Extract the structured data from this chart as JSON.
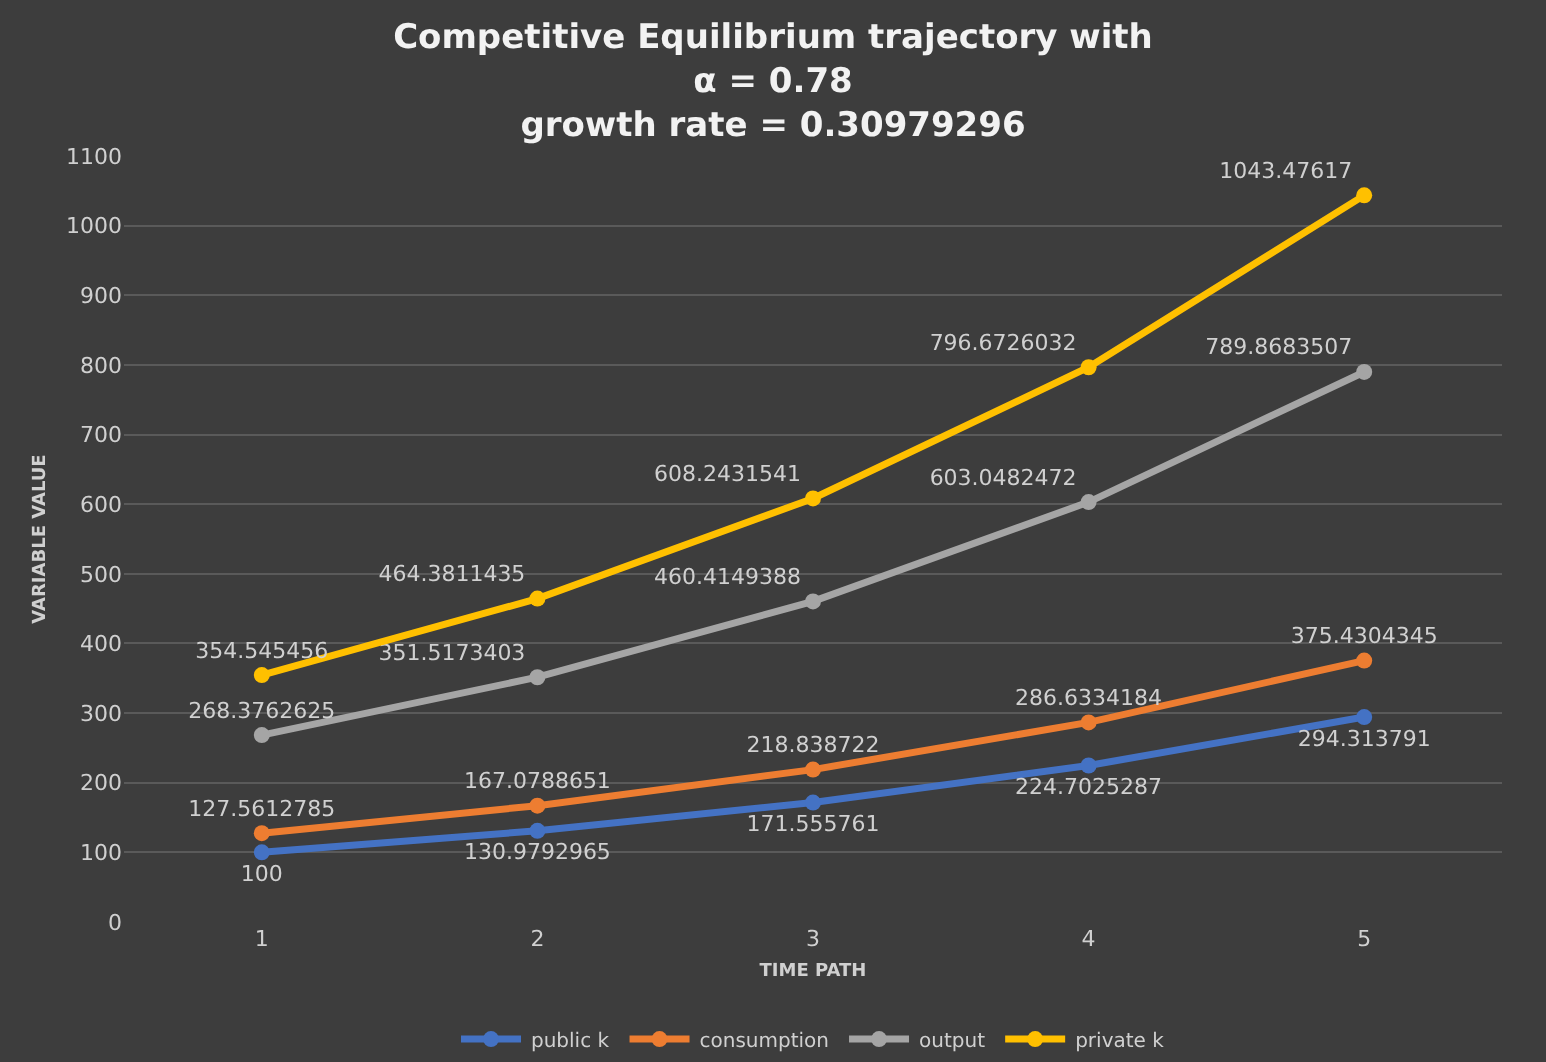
{
  "chart_data": {
    "type": "line",
    "title": "Competitive Equilibrium trajectory with\nα = 0.78\ngrowth rate = 0.30979296",
    "xlabel": "TIME PATH",
    "ylabel": "VARIABLE VALUE",
    "categories": [
      "1",
      "2",
      "3",
      "4",
      "5"
    ],
    "series": [
      {
        "name": "public k",
        "color": "#4472c4",
        "values": [
          100,
          130.9792965,
          171.555761,
          224.7025287,
          294.313791
        ]
      },
      {
        "name": "consumption",
        "color": "#ed7d31",
        "values": [
          127.5612785,
          167.0788651,
          218.838722,
          286.6334184,
          375.4304345
        ]
      },
      {
        "name": "output",
        "color": "#a5a5a5",
        "values": [
          268.3762625,
          351.5173403,
          460.4149388,
          603.0482472,
          789.8683507
        ]
      },
      {
        "name": "private k",
        "color": "#ffc000",
        "values": [
          354.545456,
          464.3811435,
          608.2431541,
          796.6726032,
          1043.47617
        ]
      }
    ],
    "ylim": [
      0,
      1100
    ],
    "yticks": [
      0,
      100,
      200,
      300,
      400,
      500,
      600,
      700,
      800,
      900,
      1000,
      1100
    ],
    "grid": "y",
    "legend": "bottom",
    "marker": "circle",
    "line_style": "solid",
    "data_labels": true
  }
}
